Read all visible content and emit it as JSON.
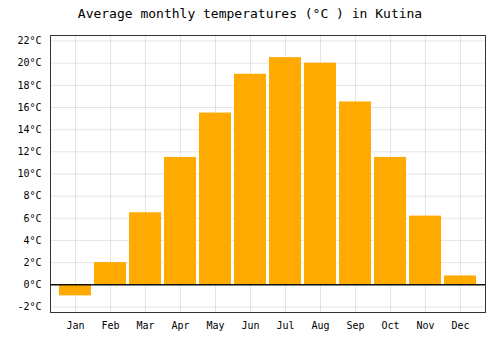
{
  "chart_data": {
    "type": "bar",
    "title": "Average monthly temperatures (°C ) in Kutina",
    "categories": [
      "Jan",
      "Feb",
      "Mar",
      "Apr",
      "May",
      "Jun",
      "Jul",
      "Aug",
      "Sep",
      "Oct",
      "Nov",
      "Dec"
    ],
    "values": [
      -1.0,
      2.0,
      6.5,
      11.5,
      15.5,
      19.0,
      20.5,
      20.0,
      16.5,
      11.5,
      6.2,
      0.8
    ],
    "color": "#FFAA00",
    "ylim": [
      -2.5,
      22.5
    ],
    "yticks": [
      {
        "value": -2,
        "label": "-2°C"
      },
      {
        "value": 0,
        "label": "0°C"
      },
      {
        "value": 2,
        "label": "2°C"
      },
      {
        "value": 4,
        "label": "4°C"
      },
      {
        "value": 6,
        "label": "6°C"
      },
      {
        "value": 8,
        "label": "8°C"
      },
      {
        "value": 10,
        "label": "10°C"
      },
      {
        "value": 12,
        "label": "12°C"
      },
      {
        "value": 14,
        "label": "14°C"
      },
      {
        "value": 16,
        "label": "16°C"
      },
      {
        "value": 18,
        "label": "18°C"
      },
      {
        "value": 20,
        "label": "20°C"
      },
      {
        "value": 22,
        "label": "22°C"
      }
    ],
    "grid": true
  }
}
